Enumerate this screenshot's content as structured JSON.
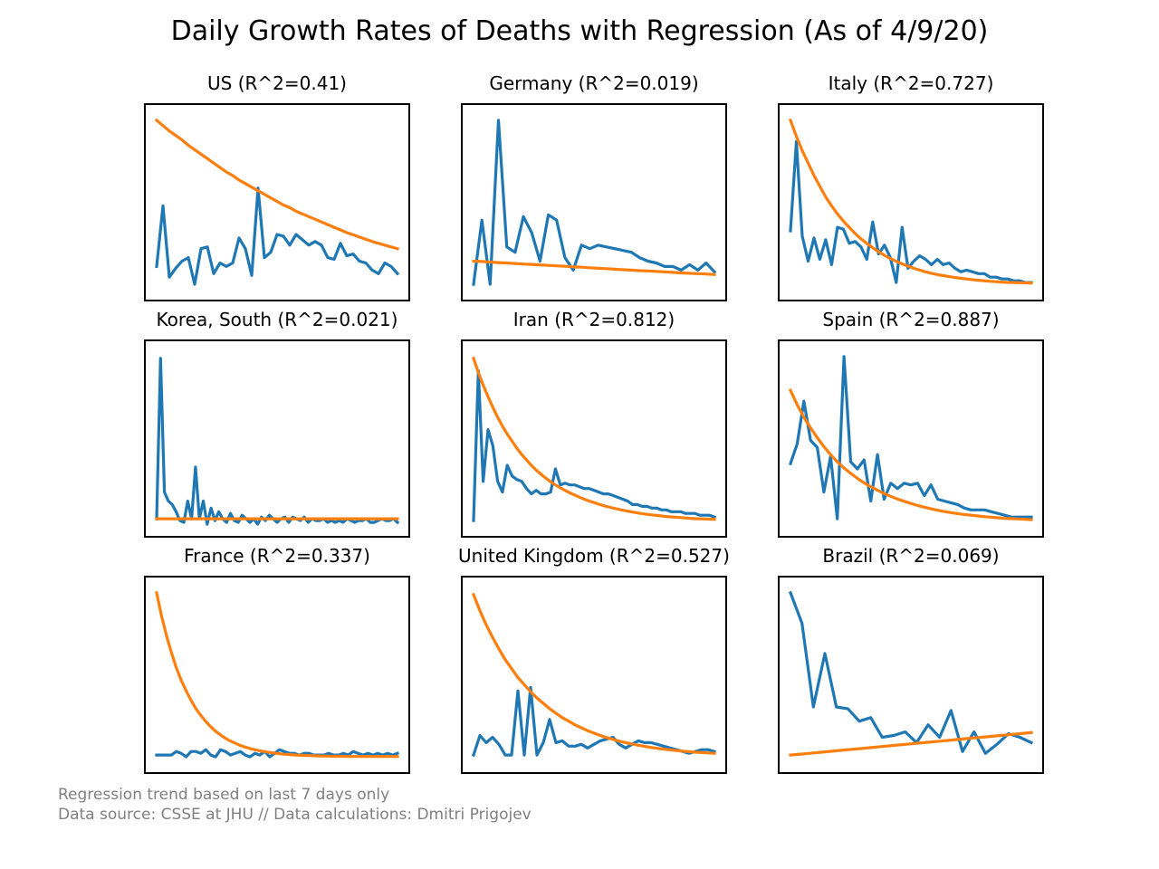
{
  "figure_title": "Daily Growth Rates of Deaths with Regression (As of 4/9/20)",
  "footnotes": {
    "line1": "Regression trend based on last 7 days only",
    "line2": "Data source: CSSE at JHU // Data calculations: Dmitri Prigojev"
  },
  "colors": {
    "actual": "#1f77b4",
    "regression": "#ff7f0e",
    "footnote": "#808080"
  },
  "chart_data": [
    {
      "type": "line",
      "title": "US (R^2=0.41)",
      "ylim": [
        0,
        100
      ],
      "series": [
        {
          "values": [
            14,
            48,
            8,
            13,
            17,
            19,
            4,
            24,
            25,
            10,
            16,
            14,
            16,
            30,
            24,
            9,
            58,
            19,
            22,
            32,
            31,
            26,
            32,
            29,
            26,
            28,
            26,
            19,
            18,
            27,
            20,
            21,
            17,
            16,
            12,
            10,
            16,
            14,
            10
          ]
        },
        {
          "values": [
            96,
            93,
            90,
            87.5,
            85,
            82,
            79.5,
            77,
            74.5,
            72,
            69.5,
            67,
            65,
            62.5,
            60.5,
            58.5,
            56.5,
            54.5,
            52.5,
            50.5,
            48.5,
            47,
            45,
            43.5,
            42,
            40.5,
            39,
            37.5,
            36,
            34.5,
            33,
            31.8,
            30.5,
            29.3,
            28,
            27,
            26,
            25,
            24
          ]
        }
      ]
    },
    {
      "type": "line",
      "title": "Germany (R^2=0.019)",
      "ylim": [
        0,
        100
      ],
      "series": [
        {
          "values": [
            4,
            40,
            4,
            96,
            25,
            22,
            42,
            33,
            17,
            43,
            40,
            19,
            12,
            26,
            24,
            26,
            25,
            24,
            23,
            22,
            19,
            17,
            16,
            14,
            14,
            12,
            15,
            12,
            16,
            11
          ]
        },
        {
          "values": [
            17,
            16.8,
            16.5,
            16.2,
            16,
            15.7,
            15.4,
            15.2,
            14.9,
            14.6,
            14.4,
            14.1,
            13.8,
            13.6,
            13.3,
            13,
            12.8,
            12.5,
            12.2,
            12,
            11.7,
            11.5,
            11.2,
            11,
            10.7,
            10.4,
            10.2,
            10,
            9.8,
            9.5
          ]
        }
      ]
    },
    {
      "type": "line",
      "title": "Italy (R^2=0.727)",
      "ylim": [
        0,
        100
      ],
      "series": [
        {
          "values": [
            34,
            84,
            31,
            17,
            30,
            18,
            29,
            15,
            36,
            35,
            27,
            28,
            25,
            18,
            39,
            21,
            26,
            19,
            5,
            36,
            13,
            17,
            20,
            18,
            15,
            18,
            15,
            16,
            13,
            11,
            12,
            11,
            10,
            10,
            8,
            8,
            7,
            7,
            6,
            6,
            5,
            5
          ]
        },
        {
          "values": [
            96,
            87,
            79,
            72,
            65,
            59,
            53,
            48,
            43.5,
            39.5,
            36,
            32.5,
            29.5,
            27,
            24.5,
            22.3,
            20.3,
            18.5,
            16.9,
            15.5,
            14.2,
            13,
            12,
            11,
            10.2,
            9.5,
            8.9,
            8.3,
            7.8,
            7.4,
            7,
            6.6,
            6.3,
            6,
            5.7,
            5.5,
            5.3,
            5.1,
            5,
            4.9,
            4.8,
            4.7
          ]
        }
      ]
    },
    {
      "type": "line",
      "title": "Korea, South (R^2=0.021)",
      "ylim": [
        0,
        100
      ],
      "series": [
        {
          "values": [
            5,
            95,
            20,
            15,
            13,
            9,
            4,
            3,
            15,
            5,
            34,
            5,
            15,
            2,
            11,
            4,
            9,
            5,
            3,
            8,
            4,
            3,
            7,
            5,
            3,
            5,
            2,
            6,
            4,
            7,
            5,
            3,
            5,
            6,
            3,
            6,
            5,
            4,
            6,
            3,
            5,
            4,
            4,
            5,
            3,
            4,
            3,
            4,
            3,
            5,
            4,
            3,
            4,
            4,
            5,
            3,
            3,
            4,
            5,
            4,
            4,
            5,
            3
          ]
        },
        {
          "values": [
            5,
            5,
            5,
            5,
            5,
            5,
            5,
            5,
            5,
            5,
            5,
            5,
            5,
            5,
            5,
            5,
            5,
            5,
            5,
            5,
            5,
            5,
            5,
            5,
            5,
            5,
            5,
            5,
            5,
            5,
            5,
            5,
            5,
            5,
            5,
            5,
            5,
            5,
            5,
            5,
            5,
            5,
            5,
            5,
            5,
            5,
            5,
            5,
            5,
            5,
            5,
            5,
            5,
            5,
            5,
            5,
            5,
            5,
            5,
            5,
            5,
            5,
            5
          ]
        }
      ]
    },
    {
      "type": "line",
      "title": "Iran (R^2=0.812)",
      "ylim": [
        0,
        100
      ],
      "series": [
        {
          "values": [
            4,
            88,
            26,
            55,
            46,
            26,
            20,
            35,
            29,
            27,
            26,
            22,
            19,
            21,
            19,
            19,
            20,
            33,
            24,
            25,
            24,
            24,
            23,
            22,
            22,
            21,
            20,
            19,
            19,
            18,
            17,
            16,
            15,
            13,
            13,
            12,
            12,
            11,
            11,
            10,
            10,
            9,
            9,
            9,
            8,
            8,
            8,
            7,
            7,
            7,
            6
          ]
        },
        {
          "values": [
            95,
            87,
            80,
            73.5,
            67.5,
            62,
            57,
            52.5,
            48.5,
            44.5,
            41,
            38,
            35,
            32.3,
            30,
            27.8,
            25.8,
            24,
            22.4,
            20.9,
            19.5,
            18.3,
            17.1,
            16,
            15,
            14.1,
            13.2,
            12.4,
            11.7,
            11,
            10.4,
            9.8,
            9.3,
            8.8,
            8.3,
            7.9,
            7.5,
            7.2,
            6.9,
            6.6,
            6.3,
            6.1,
            5.9,
            5.7,
            5.5,
            5.3,
            5.1,
            5,
            4.9,
            4.8,
            4.7
          ]
        }
      ]
    },
    {
      "type": "line",
      "title": "Spain (R^2=0.887)",
      "ylim": [
        0,
        100
      ],
      "series": [
        {
          "values": [
            36,
            47,
            71,
            49,
            45,
            20,
            40,
            5,
            96,
            37,
            33,
            38,
            15,
            41,
            16,
            25,
            22,
            25,
            24,
            25,
            18,
            24,
            16,
            15,
            14,
            13,
            11,
            10,
            10,
            10,
            9,
            8,
            7,
            6,
            6,
            6,
            6
          ]
        },
        {
          "values": [
            77,
            69,
            62,
            56,
            50.5,
            45.5,
            41,
            37,
            33.5,
            30.5,
            27.7,
            25.2,
            23,
            21,
            19.2,
            17.6,
            16.1,
            14.8,
            13.6,
            12.5,
            11.5,
            10.6,
            9.8,
            9.1,
            8.5,
            7.9,
            7.4,
            7,
            6.6,
            6.2,
            5.9,
            5.6,
            5.3,
            5.1,
            4.9,
            4.7,
            4.5
          ]
        }
      ]
    },
    {
      "type": "line",
      "title": "France (R^2=0.337)",
      "ylim": [
        0,
        100
      ],
      "series": [
        {
          "values": [
            5,
            5,
            5,
            5,
            7,
            6,
            4,
            7,
            7,
            6,
            8,
            5,
            4,
            8,
            7,
            5,
            6,
            7,
            5,
            4,
            6,
            5,
            7,
            4,
            6,
            8,
            7,
            6,
            6,
            5,
            6,
            6,
            5,
            5,
            5,
            6,
            5,
            5,
            6,
            5,
            7,
            6,
            5,
            6,
            5,
            6,
            5,
            6,
            5,
            6
          ]
        },
        {
          "values": [
            96,
            83,
            72,
            62.5,
            54,
            47,
            41,
            35.7,
            31,
            27.2,
            23.8,
            20.9,
            18.4,
            16.3,
            14.4,
            12.9,
            11.6,
            10.4,
            9.5,
            8.7,
            8,
            7.4,
            6.9,
            6.5,
            6.1,
            5.8,
            5.5,
            5.3,
            5.1,
            4.9,
            4.8,
            4.7,
            4.6,
            4.5,
            4.4,
            4.4,
            4.3,
            4.3,
            4.3,
            4.2,
            4.2,
            4.2,
            4.2,
            4.2,
            4.2,
            4.2,
            4.2,
            4.2,
            4.2,
            4.2
          ]
        }
      ]
    },
    {
      "type": "line",
      "title": "United Kingdom (R^2=0.527)",
      "ylim": [
        0,
        100
      ],
      "series": [
        {
          "values": [
            5,
            16,
            12,
            15,
            11,
            5,
            5,
            41,
            5,
            43,
            5,
            12,
            25,
            12,
            13,
            10,
            10,
            11,
            9,
            11,
            13,
            14,
            15,
            11,
            9,
            11,
            13,
            12,
            12,
            11,
            10,
            9,
            8,
            7,
            6,
            7,
            8,
            8,
            7
          ]
        },
        {
          "values": [
            95,
            86,
            78,
            71,
            64.5,
            58.5,
            53.5,
            48.5,
            44.5,
            40.5,
            37,
            34,
            31,
            28.5,
            26,
            24,
            22,
            20.3,
            18.7,
            17.3,
            16,
            14.8,
            13.8,
            12.8,
            12,
            11.2,
            10.5,
            9.9,
            9.3,
            8.8,
            8.3,
            7.9,
            7.5,
            7.2,
            6.9,
            6.6,
            6.4,
            6.2,
            6
          ]
        }
      ]
    },
    {
      "type": "line",
      "title": "Brazil (R^2=0.069)",
      "ylim": [
        0,
        100
      ],
      "series": [
        {
          "values": [
            96,
            79,
            32,
            62,
            32,
            31,
            24,
            26,
            15,
            16,
            18,
            12,
            22,
            15,
            30,
            7,
            18,
            6,
            11,
            17,
            15,
            12
          ]
        },
        {
          "values": [
            5,
            5.6,
            6.2,
            6.8,
            7.4,
            8,
            8.6,
            9.2,
            9.8,
            10.4,
            11,
            11.6,
            12.2,
            12.8,
            13.4,
            14,
            14.6,
            15.2,
            15.8,
            16.4,
            17,
            17.6
          ]
        }
      ]
    }
  ]
}
